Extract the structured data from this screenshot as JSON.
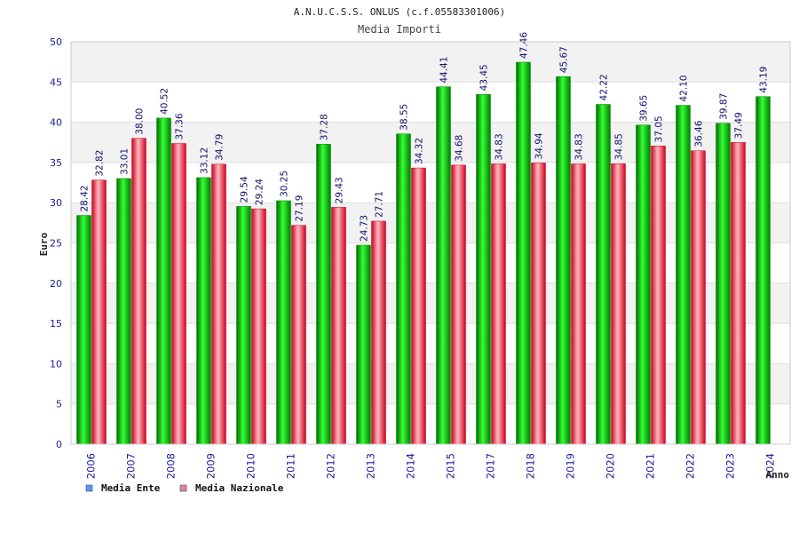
{
  "chart_data": {
    "type": "bar",
    "title": "A.N.U.C.S.S. ONLUS (c.f.05583301006)",
    "subtitle": "Media Importi",
    "xlabel": "Anno",
    "ylabel": "Euro",
    "ylim": [
      0,
      50
    ],
    "ytick_step": 5,
    "categories": [
      "2006",
      "2007",
      "2008",
      "2009",
      "2010",
      "2011",
      "2012",
      "2013",
      "2014",
      "2015",
      "2017",
      "2018",
      "2019",
      "2020",
      "2021",
      "2022",
      "2023",
      "2024"
    ],
    "series": [
      {
        "name": "Media Ente",
        "color": "#00c000",
        "legend_color": "#5b9bf5",
        "values": [
          28.42,
          33.01,
          40.52,
          33.12,
          29.54,
          30.25,
          37.28,
          24.73,
          38.55,
          44.41,
          43.45,
          47.46,
          45.67,
          42.22,
          39.65,
          42.1,
          39.87,
          43.19
        ],
        "labels": [
          "28.42",
          "33.01",
          "40.52",
          "33.12",
          "29.54",
          "30.25",
          "37.28",
          "24.73",
          "38.55",
          "44.41",
          "43.45",
          "47.46",
          "45.67",
          "42.22",
          "39.65",
          "42.10",
          "39.87",
          "43.19"
        ]
      },
      {
        "name": "Media Nazionale",
        "color": "#e8101e",
        "legend_color": "#e080b0",
        "values": [
          32.82,
          38.0,
          37.36,
          34.79,
          29.24,
          27.19,
          29.43,
          27.71,
          34.32,
          34.68,
          34.83,
          34.94,
          34.83,
          34.85,
          37.05,
          36.46,
          37.49,
          null
        ],
        "labels": [
          "32.82",
          "38.00",
          "37.36",
          "34.79",
          "29.24",
          "27.19",
          "29.43",
          "27.71",
          "34.32",
          "34.68",
          "34.83",
          "34.94",
          "34.83",
          "34.85",
          "37.05",
          "36.46",
          "37.49",
          null
        ]
      }
    ],
    "grid": true,
    "legend_position": "bottom-left"
  }
}
